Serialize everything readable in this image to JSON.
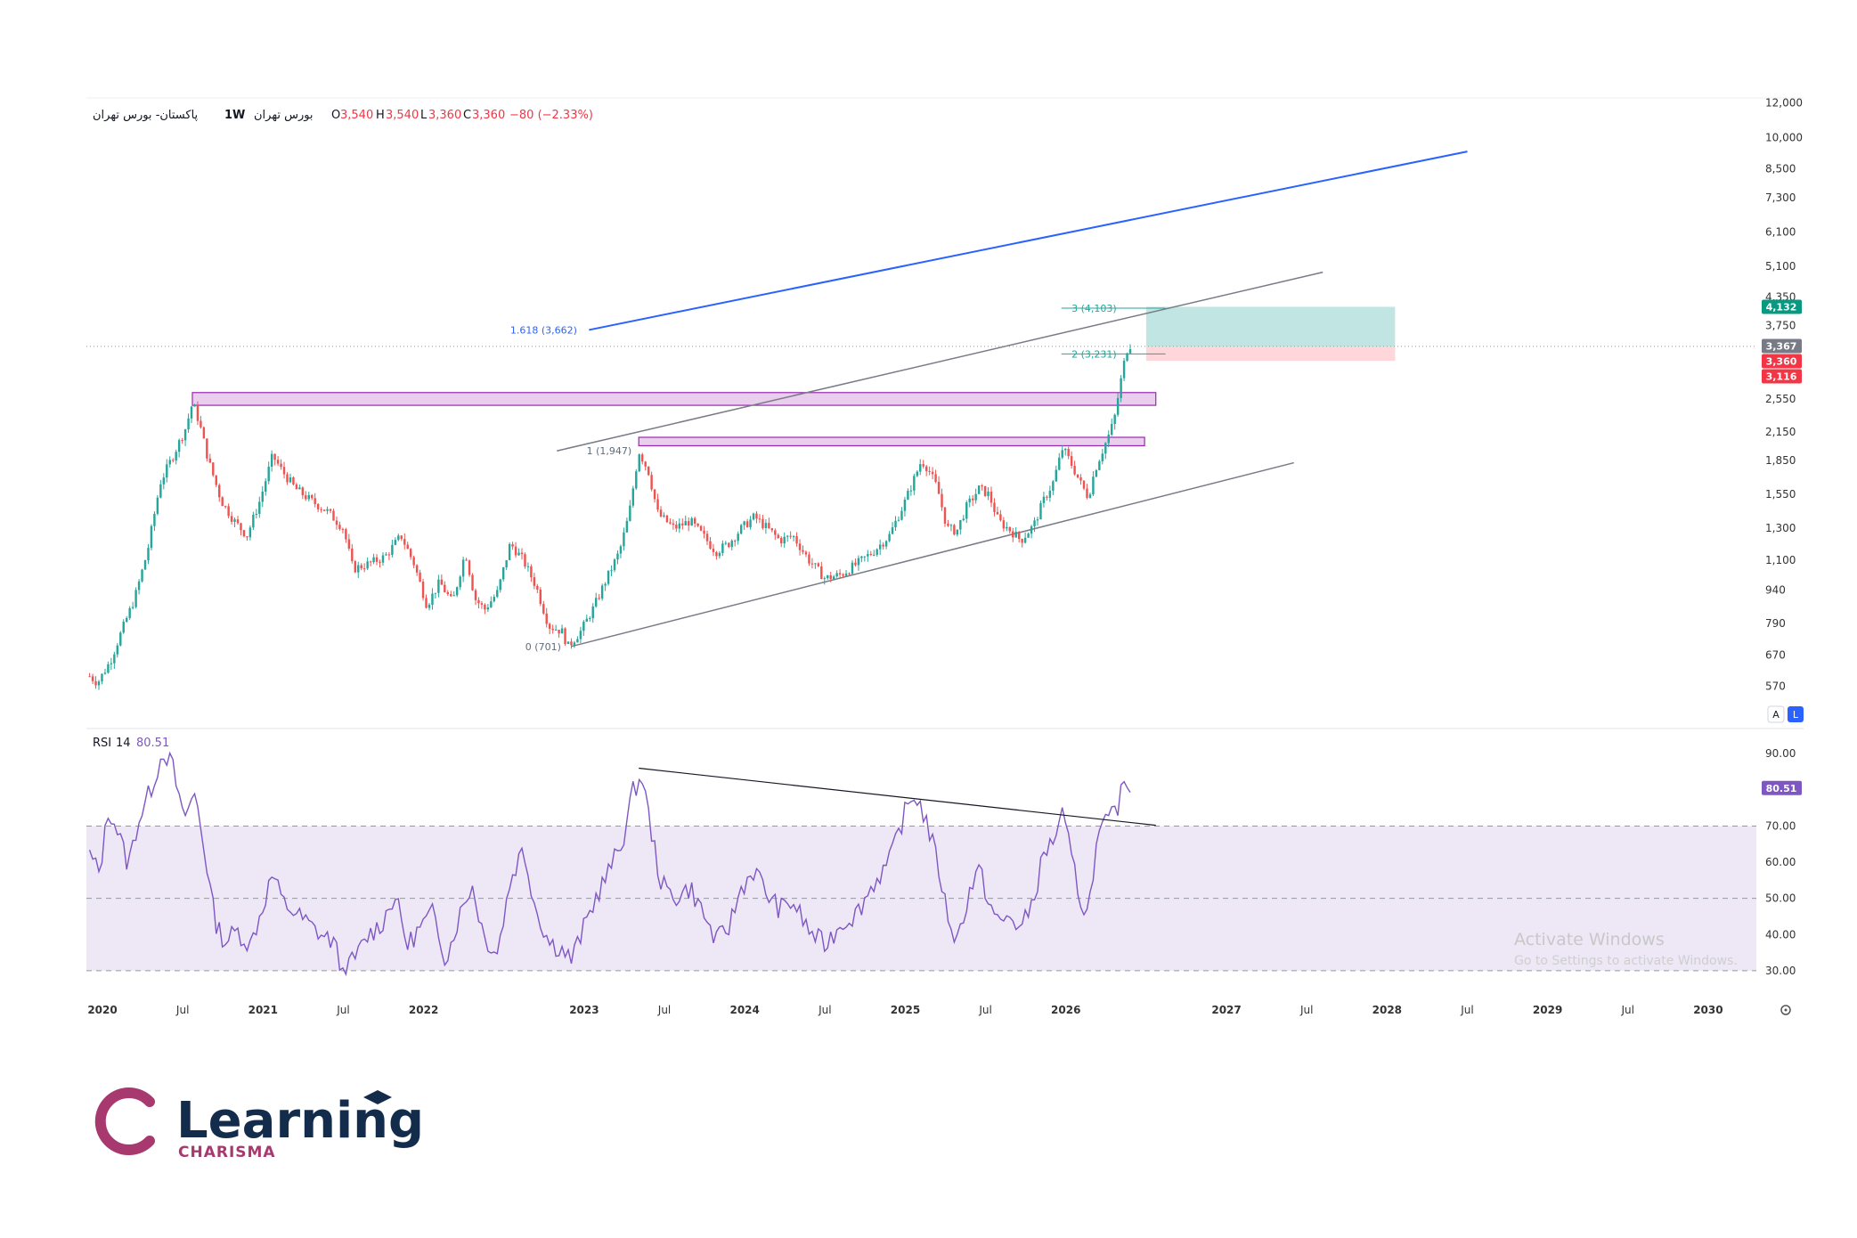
{
  "header": {
    "symbol": "پاکستان- بورس تهران",
    "interval": "1W",
    "exchange": "بورس تهران",
    "ohlc": {
      "o_label": "O",
      "o": "3,540",
      "h_label": "H",
      "h": "3,540",
      "l_label": "L",
      "l": "3,360",
      "c_label": "C",
      "c": "3,360",
      "change": "−80 (−2.33%)"
    }
  },
  "colors": {
    "up": "#26a69a",
    "down": "#ef5350",
    "blue_line": "#2962ff",
    "channel": "#787b86",
    "resistance_zone": "#e1bee7",
    "resistance_border": "#9c27b0",
    "target_zone": "#b2dfdb",
    "stop_zone": "#ffcdd2",
    "rsi_line": "#7e57c2",
    "rsi_band": "#ede7f6",
    "fib_text": "#5d6d7e",
    "fib_blue_text": "#2962ff",
    "fib_teal_text": "#26a69a",
    "logo_navy": "#142c4c",
    "logo_magenta": "#a8396f"
  },
  "chart_data": [
    {
      "type": "candlestick",
      "title": "",
      "y_scale": "log",
      "x": {
        "tick_labels": [
          "2020",
          "Jul",
          "2021",
          "Jul",
          "2022",
          "2023",
          "Jul",
          "2024",
          "Jul",
          "2025",
          "Jul",
          "2026",
          "2027",
          "Jul",
          "2028",
          "Jul",
          "2029",
          "Jul",
          "2030"
        ],
        "tick_dates": [
          2020.0,
          2020.5,
          2021.0,
          2021.5,
          2022.0,
          2023.0,
          2023.5,
          2024.0,
          2024.5,
          2025.0,
          2025.5,
          2026.0,
          2027.0,
          2027.5,
          2028.0,
          2028.5,
          2029.0,
          2029.5,
          2030.0
        ],
        "range": [
          2019.9,
          2030.3
        ]
      },
      "y": {
        "tick_labels": [
          "12,000",
          "10,000",
          "8,500",
          "7,300",
          "6,100",
          "5,100",
          "4,350",
          "3,750",
          "2,550",
          "2,150",
          "1,850",
          "1,550",
          "1,300",
          "1,100",
          "940",
          "790",
          "670",
          "570"
        ],
        "ticks": [
          12000,
          10000,
          8500,
          7300,
          6100,
          5100,
          4350,
          3750,
          2550,
          2150,
          1850,
          1550,
          1300,
          1100,
          940,
          790,
          670,
          570
        ],
        "range": [
          520,
          12300
        ]
      },
      "price_anchors": [
        [
          2019.92,
          600
        ],
        [
          2019.97,
          580
        ],
        [
          2020.05,
          650
        ],
        [
          2020.12,
          760
        ],
        [
          2020.2,
          900
        ],
        [
          2020.28,
          1150
        ],
        [
          2020.36,
          1650
        ],
        [
          2020.44,
          1900
        ],
        [
          2020.52,
          2200
        ],
        [
          2020.56,
          2500
        ],
        [
          2020.6,
          2280
        ],
        [
          2020.66,
          1850
        ],
        [
          2020.74,
          1500
        ],
        [
          2020.82,
          1350
        ],
        [
          2020.9,
          1250
        ],
        [
          2020.98,
          1500
        ],
        [
          2021.06,
          1900
        ],
        [
          2021.12,
          1750
        ],
        [
          2021.2,
          1600
        ],
        [
          2021.3,
          1500
        ],
        [
          2021.4,
          1420
        ],
        [
          2021.5,
          1300
        ],
        [
          2021.56,
          1050
        ],
        [
          2021.66,
          1080
        ],
        [
          2021.76,
          1120
        ],
        [
          2021.86,
          1250
        ],
        [
          2021.94,
          1080
        ],
        [
          2022.02,
          870
        ],
        [
          2022.1,
          980
        ],
        [
          2022.18,
          880
        ],
        [
          2022.26,
          1150
        ],
        [
          2022.32,
          900
        ],
        [
          2022.38,
          850
        ],
        [
          2022.46,
          930
        ],
        [
          2022.54,
          1200
        ],
        [
          2022.62,
          1100
        ],
        [
          2022.7,
          960
        ],
        [
          2022.78,
          780
        ],
        [
          2022.86,
          760
        ],
        [
          2022.9,
          701
        ],
        [
          2022.98,
          760
        ],
        [
          2023.06,
          860
        ],
        [
          2023.14,
          1000
        ],
        [
          2023.22,
          1150
        ],
        [
          2023.28,
          1400
        ],
        [
          2023.34,
          1947
        ],
        [
          2023.4,
          1750
        ],
        [
          2023.46,
          1400
        ],
        [
          2023.56,
          1300
        ],
        [
          2023.66,
          1350
        ],
        [
          2023.74,
          1250
        ],
        [
          2023.82,
          1150
        ],
        [
          2023.9,
          1200
        ],
        [
          2023.98,
          1300
        ],
        [
          2024.06,
          1380
        ],
        [
          2024.14,
          1300
        ],
        [
          2024.22,
          1220
        ],
        [
          2024.3,
          1250
        ],
        [
          2024.4,
          1100
        ],
        [
          2024.5,
          1000
        ],
        [
          2024.6,
          1020
        ],
        [
          2024.7,
          1080
        ],
        [
          2024.8,
          1150
        ],
        [
          2024.9,
          1250
        ],
        [
          2025.0,
          1500
        ],
        [
          2025.06,
          1700
        ],
        [
          2025.1,
          1850
        ],
        [
          2025.14,
          1780
        ],
        [
          2025.2,
          1600
        ],
        [
          2025.26,
          1300
        ],
        [
          2025.32,
          1280
        ],
        [
          2025.38,
          1450
        ],
        [
          2025.46,
          1600
        ],
        [
          2025.52,
          1550
        ],
        [
          2025.58,
          1350
        ],
        [
          2025.66,
          1280
        ],
        [
          2025.72,
          1220
        ],
        [
          2025.8,
          1320
        ],
        [
          2025.86,
          1500
        ],
        [
          2025.92,
          1650
        ],
        [
          2025.98,
          1980
        ],
        [
          2026.04,
          1800
        ],
        [
          2026.1,
          1620
        ],
        [
          2026.14,
          1530
        ],
        [
          2026.18,
          1760
        ],
        [
          2026.22,
          1920
        ],
        [
          2026.26,
          2080
        ],
        [
          2026.3,
          2280
        ],
        [
          2026.33,
          2650
        ],
        [
          2026.36,
          3050
        ],
        [
          2026.39,
          3420
        ],
        [
          2026.41,
          3360
        ]
      ],
      "annotations": {
        "fib_labels": [
          {
            "text": "0 (701)",
            "x": 2022.9,
            "y": 701
          },
          {
            "text": "1 (1,947)",
            "x": 2023.34,
            "y": 1947
          },
          {
            "text": "1.618 (3,662)",
            "x": 2023.0,
            "y": 3662
          },
          {
            "text": "2 (3,231)",
            "x": 2026.36,
            "y": 3231
          },
          {
            "text": "3 (4,103)",
            "x": 2026.36,
            "y": 4103
          }
        ],
        "blue_trendline": [
          [
            2023.03,
            3662
          ],
          [
            2028.5,
            9300
          ]
        ],
        "channel_lower": [
          [
            2022.92,
            701
          ],
          [
            2027.42,
            1830
          ]
        ],
        "channel_upper": [
          [
            2022.83,
            1947
          ],
          [
            2027.6,
            4950
          ]
        ],
        "resistance_zones": [
          {
            "x0": 2020.56,
            "x1": 2026.56,
            "y0": 2470,
            "y1": 2640
          },
          {
            "x0": 2023.34,
            "x1": 2026.49,
            "y0": 2000,
            "y1": 2090
          }
        ],
        "target_box": {
          "x0": 2026.5,
          "x1": 2028.05,
          "y0": 3360,
          "y1": 4132
        },
        "stop_box": {
          "x0": 2026.5,
          "x1": 2028.05,
          "y0": 3116,
          "y1": 3360
        }
      },
      "price_badges": [
        {
          "text": "4,132",
          "value": 4132,
          "color": "#089981"
        },
        {
          "text": "3,367",
          "value": 3367,
          "color": "#787b86"
        },
        {
          "text": "3,360",
          "value": 3360,
          "color": "#f23645"
        },
        {
          "text": "3,116",
          "value": 3116,
          "color": "#f23645"
        }
      ],
      "scale_buttons": [
        "A",
        "L"
      ]
    },
    {
      "type": "line",
      "title": "RSI",
      "series": [
        {
          "name": "RSI",
          "period": "14",
          "last": "80.51"
        }
      ],
      "y": {
        "tick_labels": [
          "90.00",
          "80.00",
          "70.00",
          "60.00",
          "50.00",
          "40.00",
          "30.00"
        ],
        "ticks": [
          90,
          80,
          70,
          60,
          50,
          40,
          30
        ],
        "range": [
          28,
          94
        ]
      },
      "levels": [
        70,
        50,
        30
      ],
      "rsi_anchors": [
        [
          2019.92,
          62
        ],
        [
          2019.98,
          57
        ],
        [
          2020.04,
          75
        ],
        [
          2020.1,
          68
        ],
        [
          2020.16,
          59
        ],
        [
          2020.22,
          71
        ],
        [
          2020.3,
          80
        ],
        [
          2020.38,
          91
        ],
        [
          2020.44,
          86
        ],
        [
          2020.5,
          72
        ],
        [
          2020.58,
          79
        ],
        [
          2020.64,
          62
        ],
        [
          2020.7,
          44
        ],
        [
          2020.76,
          38
        ],
        [
          2020.84,
          41
        ],
        [
          2020.92,
          37
        ],
        [
          2021.0,
          48
        ],
        [
          2021.06,
          57
        ],
        [
          2021.12,
          49
        ],
        [
          2021.2,
          46
        ],
        [
          2021.28,
          43
        ],
        [
          2021.36,
          40
        ],
        [
          2021.44,
          38
        ],
        [
          2021.5,
          29
        ],
        [
          2021.58,
          34
        ],
        [
          2021.66,
          40
        ],
        [
          2021.74,
          43
        ],
        [
          2021.82,
          51
        ],
        [
          2021.9,
          37
        ],
        [
          2021.98,
          42
        ],
        [
          2022.06,
          46
        ],
        [
          2022.14,
          33
        ],
        [
          2022.22,
          45
        ],
        [
          2022.3,
          54
        ],
        [
          2022.38,
          39
        ],
        [
          2022.46,
          35
        ],
        [
          2022.54,
          55
        ],
        [
          2022.62,
          64
        ],
        [
          2022.7,
          47
        ],
        [
          2022.78,
          38
        ],
        [
          2022.86,
          36
        ],
        [
          2022.92,
          33
        ],
        [
          2023.0,
          42
        ],
        [
          2023.08,
          51
        ],
        [
          2023.16,
          58
        ],
        [
          2023.24,
          66
        ],
        [
          2023.3,
          79
        ],
        [
          2023.36,
          84
        ],
        [
          2023.42,
          68
        ],
        [
          2023.48,
          54
        ],
        [
          2023.56,
          50
        ],
        [
          2023.66,
          53
        ],
        [
          2023.74,
          46
        ],
        [
          2023.82,
          38
        ],
        [
          2023.9,
          42
        ],
        [
          2023.98,
          53
        ],
        [
          2024.06,
          58
        ],
        [
          2024.14,
          51
        ],
        [
          2024.22,
          47
        ],
        [
          2024.3,
          49
        ],
        [
          2024.4,
          41
        ],
        [
          2024.5,
          37
        ],
        [
          2024.6,
          43
        ],
        [
          2024.7,
          46
        ],
        [
          2024.8,
          54
        ],
        [
          2024.9,
          60
        ],
        [
          2025.0,
          74
        ],
        [
          2025.06,
          79
        ],
        [
          2025.1,
          75
        ],
        [
          2025.14,
          70
        ],
        [
          2025.2,
          60
        ],
        [
          2025.26,
          46
        ],
        [
          2025.32,
          38
        ],
        [
          2025.4,
          52
        ],
        [
          2025.46,
          58
        ],
        [
          2025.52,
          49
        ],
        [
          2025.58,
          43
        ],
        [
          2025.66,
          45
        ],
        [
          2025.72,
          41
        ],
        [
          2025.8,
          50
        ],
        [
          2025.86,
          62
        ],
        [
          2025.92,
          66
        ],
        [
          2025.98,
          73
        ],
        [
          2026.04,
          60
        ],
        [
          2026.1,
          48
        ],
        [
          2026.14,
          46
        ],
        [
          2026.18,
          62
        ],
        [
          2026.22,
          69
        ],
        [
          2026.28,
          72
        ],
        [
          2026.33,
          76
        ],
        [
          2026.37,
          84
        ],
        [
          2026.41,
          80.51
        ]
      ],
      "trendline": [
        [
          2023.34,
          86
        ],
        [
          2026.56,
          70.2
        ]
      ]
    }
  ],
  "watermark": {
    "title": "Activate Windows",
    "subtitle": "Go to Settings to activate Windows."
  },
  "logo": {
    "word": "Learning",
    "sub": "CHARISMA"
  }
}
